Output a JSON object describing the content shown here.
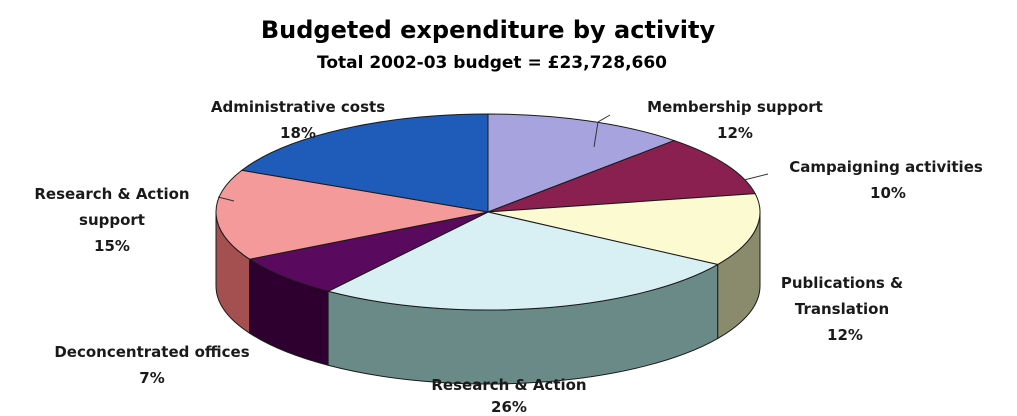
{
  "chart_data": {
    "type": "pie",
    "style": "3d-tilted",
    "title": "Budgeted expenditure by activity",
    "subtitle": "Total 2002-03 budget = £23,728,660",
    "slices": [
      {
        "name": "Membership support",
        "value": 12,
        "percent_label": "12%",
        "color": "#a7a3de",
        "side_color": "#6e6aa0"
      },
      {
        "name": "Campaigning activities",
        "value": 10,
        "percent_label": "10%",
        "color": "#8a2050",
        "side_color": "#5a1234"
      },
      {
        "name": "Publications & Translation",
        "value": 12,
        "percent_label": "12%",
        "color": "#fbfad0",
        "side_color": "#8a8a6c"
      },
      {
        "name": "Research & Action",
        "value": 26,
        "percent_label": "26%",
        "color": "#d8f0f4",
        "side_color": "#6a8a88"
      },
      {
        "name": "Deconcentrated offices",
        "value": 7,
        "percent_label": "7%",
        "color": "#5a0a5e",
        "side_color": "#2e0030"
      },
      {
        "name": "Research & Action support",
        "value": 15,
        "percent_label": "15%",
        "color": "#f49a9a",
        "side_color": "#a45050"
      },
      {
        "name": "Administrative costs",
        "value": 18,
        "percent_label": "18%",
        "color": "#1f5bb8",
        "side_color": "#123a78"
      }
    ],
    "legend": "none"
  }
}
